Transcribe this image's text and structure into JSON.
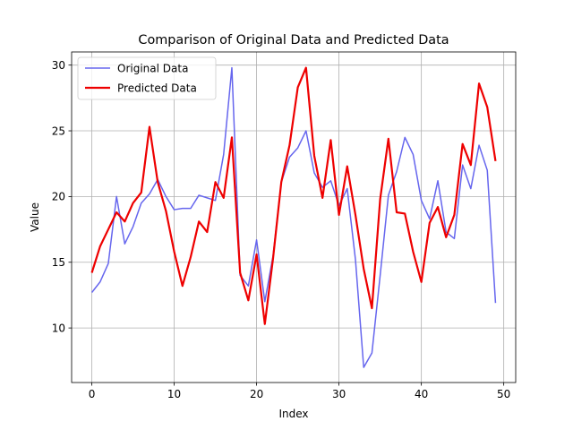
{
  "chart_data": {
    "type": "line",
    "title": "Comparison of Original Data and Predicted Data",
    "xlabel": "Index",
    "ylabel": "Value",
    "xlim": [
      -2.45,
      51.45
    ],
    "ylim": [
      5.85,
      31.0
    ],
    "xticks": [
      0,
      10,
      20,
      30,
      40,
      50
    ],
    "yticks": [
      10,
      15,
      20,
      25,
      30
    ],
    "grid": true,
    "legend_position": "top-left",
    "series": [
      {
        "name": "Original Data",
        "color": "#6666ee",
        "x": [
          0,
          1,
          2,
          3,
          4,
          5,
          6,
          7,
          8,
          9,
          10,
          11,
          12,
          13,
          14,
          15,
          16,
          17,
          18,
          19,
          20,
          21,
          22,
          23,
          24,
          25,
          26,
          27,
          28,
          29,
          30,
          31,
          32,
          33,
          34,
          35,
          36,
          37,
          38,
          39,
          40,
          41,
          42,
          43,
          44,
          45,
          46,
          47,
          48,
          49
        ],
        "values": [
          12.7,
          13.5,
          14.9,
          20.0,
          16.4,
          17.7,
          19.5,
          20.2,
          21.3,
          20.0,
          19.0,
          19.1,
          19.1,
          20.1,
          19.9,
          19.7,
          23.2,
          29.8,
          14.0,
          13.2,
          16.7,
          12.0,
          15.5,
          21.1,
          23.0,
          23.7,
          25.0,
          21.8,
          20.7,
          21.2,
          19.3,
          20.6,
          15.2,
          7.0,
          8.1,
          14.0,
          20.1,
          21.9,
          24.5,
          23.2,
          19.7,
          18.3,
          21.2,
          17.3,
          16.8,
          22.4,
          20.6,
          23.9,
          22.0,
          11.9
        ]
      },
      {
        "name": "Predicted Data",
        "color": "#ee0000",
        "x": [
          0,
          1,
          2,
          3,
          4,
          5,
          6,
          7,
          8,
          9,
          10,
          11,
          12,
          13,
          14,
          15,
          16,
          17,
          18,
          19,
          20,
          21,
          22,
          23,
          24,
          25,
          26,
          27,
          28,
          29,
          30,
          31,
          32,
          33,
          34,
          35,
          36,
          37,
          38,
          39,
          40,
          41,
          42,
          43,
          44,
          45,
          46,
          47,
          48,
          49
        ],
        "values": [
          14.2,
          16.2,
          17.5,
          18.8,
          18.1,
          19.5,
          20.3,
          25.3,
          21.1,
          18.9,
          15.8,
          13.2,
          15.4,
          18.1,
          17.3,
          21.1,
          19.9,
          24.5,
          14.2,
          12.1,
          15.6,
          10.3,
          15.3,
          21.1,
          23.9,
          28.3,
          29.8,
          23.1,
          19.9,
          24.3,
          18.6,
          22.3,
          18.6,
          14.5,
          11.5,
          19.8,
          24.4,
          18.8,
          18.7,
          15.8,
          13.5,
          18.0,
          19.2,
          16.9,
          18.6,
          24.0,
          22.4,
          28.6,
          26.8,
          22.7
        ]
      }
    ]
  }
}
